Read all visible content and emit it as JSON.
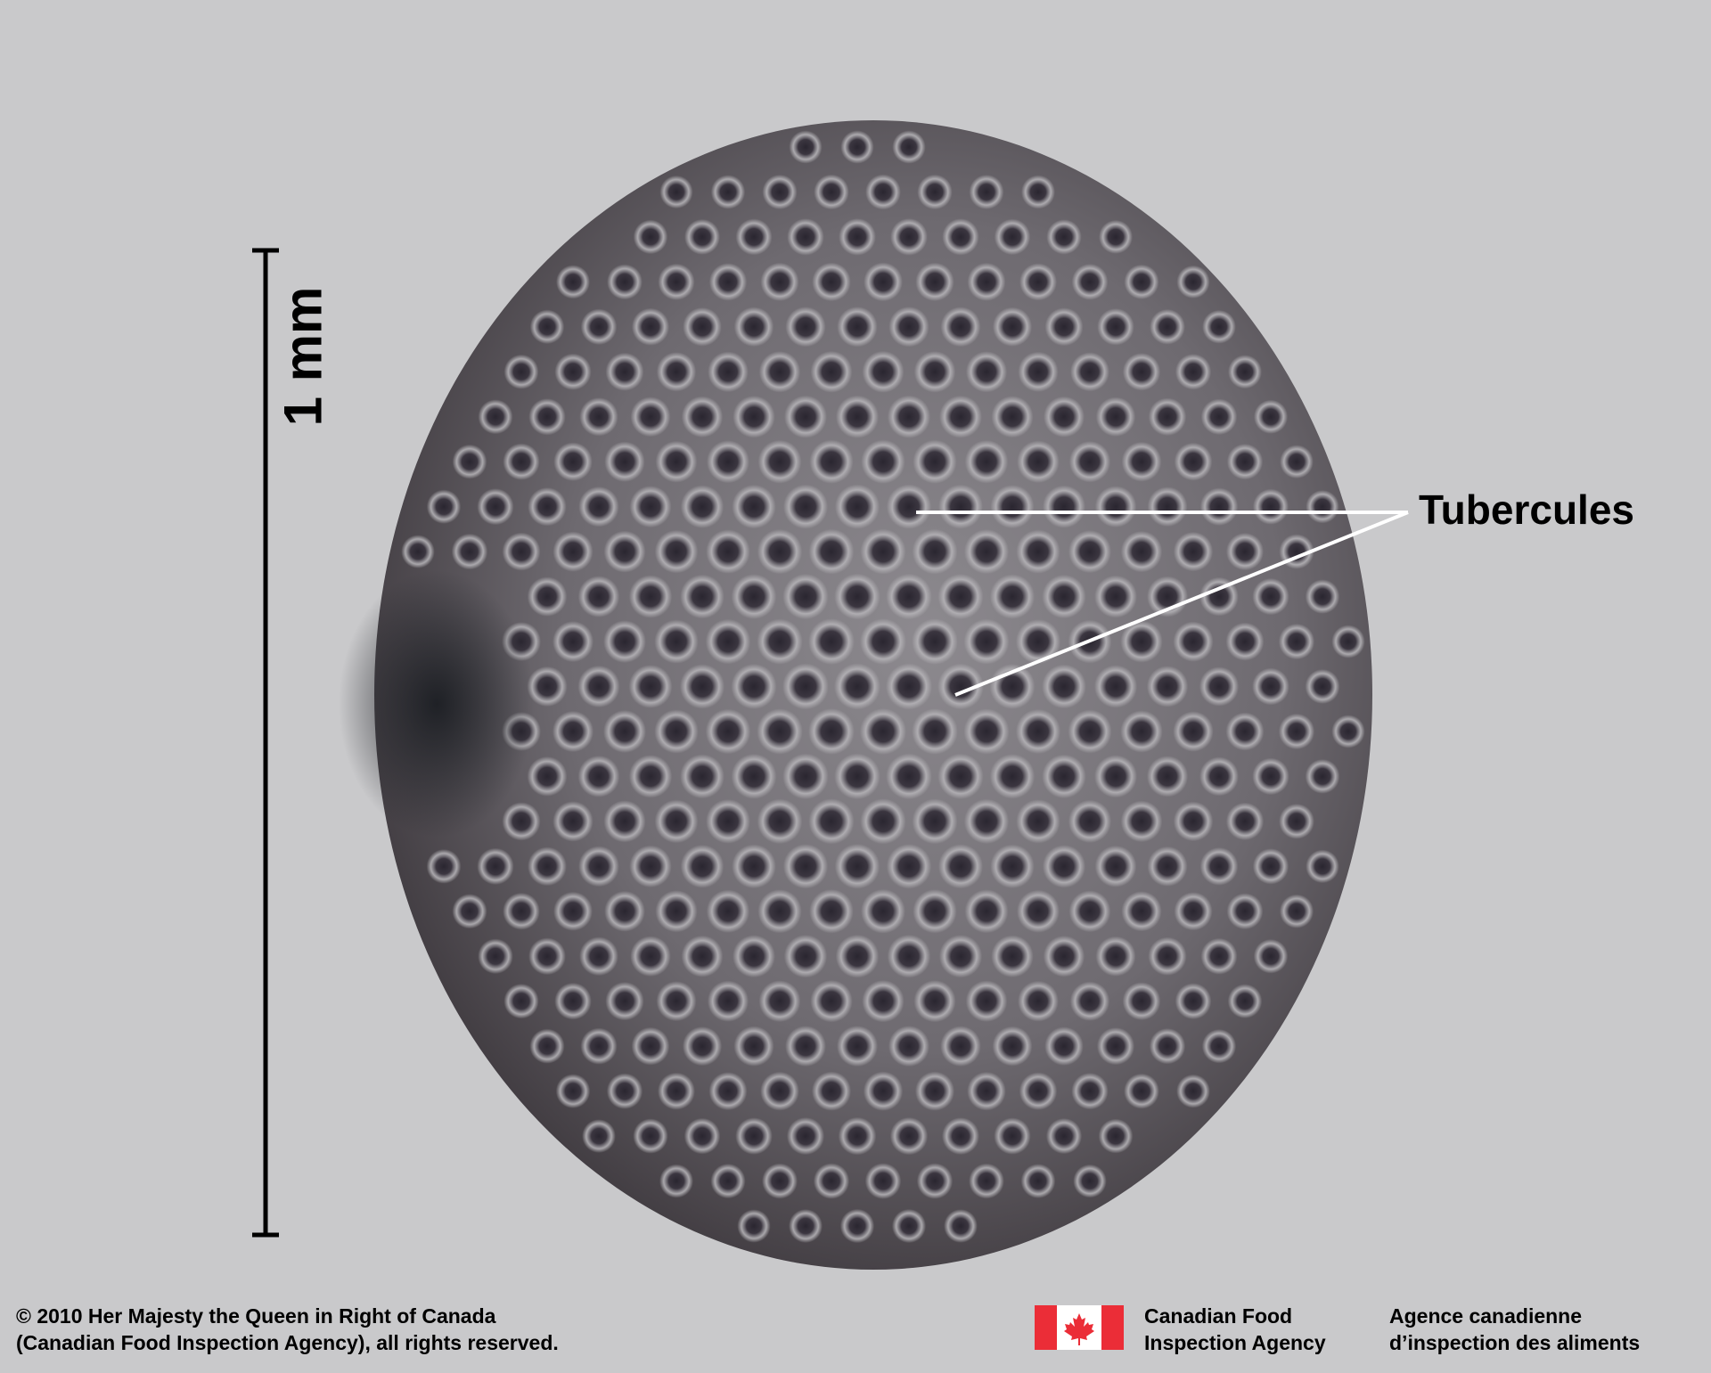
{
  "scale_bar": {
    "label": "1 mm"
  },
  "callout": {
    "label": "Tubercules"
  },
  "copyright": {
    "line1": "© 2010 Her Majesty the Queen in Right of Canada",
    "line2": "(Canadian Food Inspection Agency), all rights reserved."
  },
  "agency": {
    "en_line1": "Canadian Food",
    "en_line2": "Inspection Agency",
    "fr_line1": "Agence canadienne",
    "fr_line2": "d’inspection des aliments"
  },
  "colors": {
    "background": "#c9c9cb",
    "seed_dark": "#3a3539",
    "seed_light": "#a9a7ab",
    "tubercle": "#2e2a30",
    "callout_line": "#ffffff",
    "flag_red": "#eb2d37"
  },
  "icons": {
    "flag": "canada-flag-icon"
  }
}
